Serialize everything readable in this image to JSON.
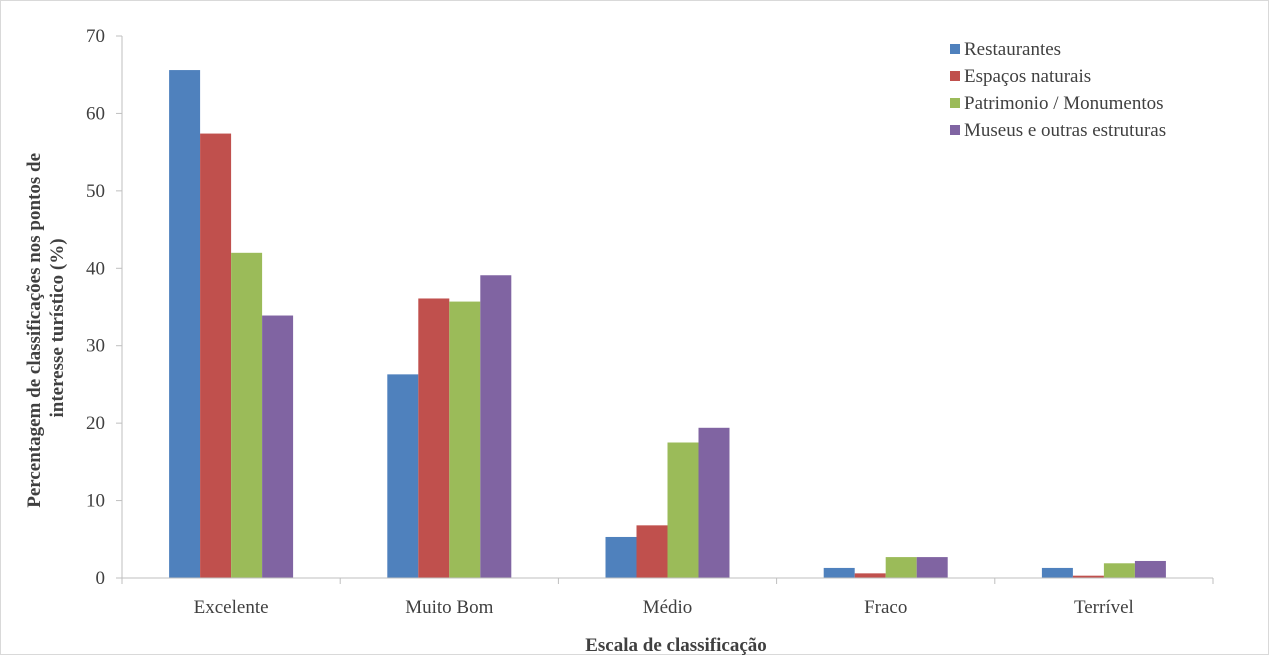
{
  "chart_data": {
    "type": "bar",
    "title": "",
    "xlabel": "Escala de classificação",
    "ylabel_lines": [
      "Percentagem de classificações nos pontos de",
      "interesse turístico (%)"
    ],
    "categories": [
      "Excelente",
      "Muito Bom",
      "Médio",
      "Fraco",
      "Terrível"
    ],
    "ylim": [
      0,
      70
    ],
    "yticks": [
      "0",
      "10",
      "20",
      "30",
      "40",
      "50",
      "60",
      "70"
    ],
    "grid": false,
    "legend_position": "top-right",
    "series": [
      {
        "name": "Restaurantes",
        "color": "#4f81bd",
        "values": [
          65.6,
          26.3,
          5.3,
          1.3,
          1.3
        ]
      },
      {
        "name": "Espaços naturais",
        "color": "#c0504d",
        "values": [
          57.4,
          36.1,
          6.8,
          0.6,
          0.3
        ]
      },
      {
        "name": "Patrimonio / Monumentos",
        "color": "#9bbb59",
        "values": [
          42.0,
          35.7,
          17.5,
          2.7,
          1.9
        ]
      },
      {
        "name": "Museus e outras estruturas",
        "color": "#8064a2",
        "values": [
          33.9,
          39.1,
          19.4,
          2.7,
          2.2
        ]
      }
    ]
  }
}
